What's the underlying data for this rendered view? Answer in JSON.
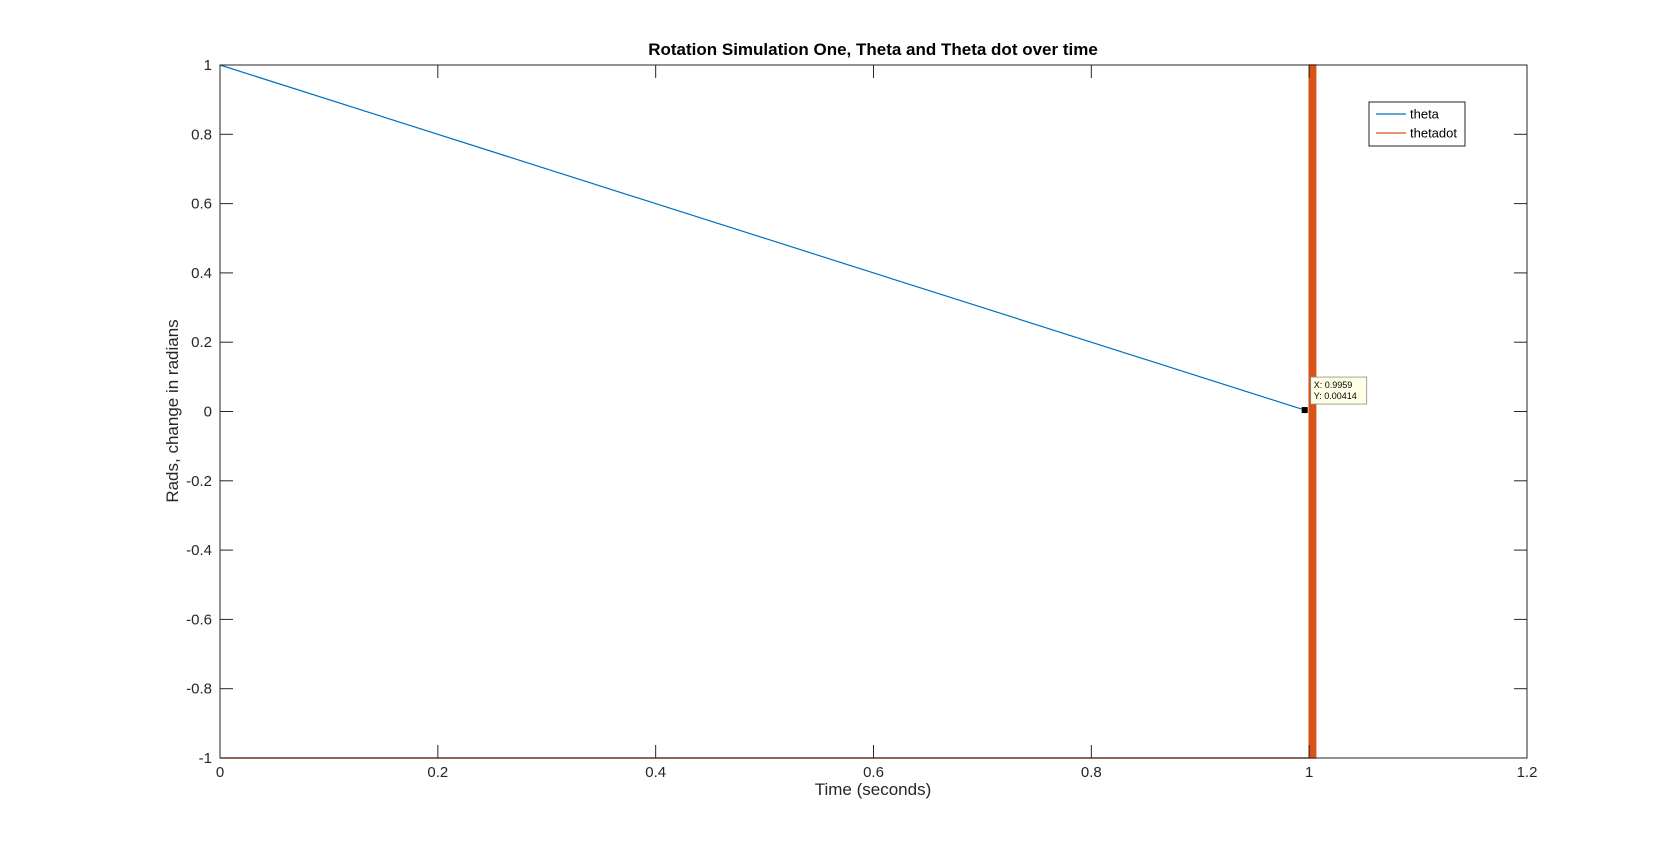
{
  "chart_data": {
    "type": "line",
    "title": "Rotation Simulation One, Theta and Theta dot over time",
    "xlabel": "Time (seconds)",
    "ylabel": "Rads, change in radians",
    "xlim": [
      0,
      1.2
    ],
    "ylim": [
      -1,
      1
    ],
    "xticks": [
      0,
      0.2,
      0.4,
      0.6,
      0.8,
      1,
      1.2
    ],
    "xtick_labels": [
      "0",
      "0.2",
      "0.4",
      "0.6",
      "0.8",
      "1",
      "1.2"
    ],
    "yticks": [
      -1,
      -0.8,
      -0.6,
      -0.4,
      -0.2,
      0,
      0.2,
      0.4,
      0.6,
      0.8,
      1
    ],
    "ytick_labels": [
      "-1",
      "-0.8",
      "-0.6",
      "-0.4",
      "-0.2",
      "0",
      "0.2",
      "0.4",
      "0.6",
      "0.8",
      "1"
    ],
    "grid": false,
    "legend_position": "top-right",
    "series": [
      {
        "name": "theta",
        "color": "#0072BD",
        "x": [
          0,
          0.9959
        ],
        "y": [
          1,
          0.00414
        ]
      },
      {
        "name": "thetadot",
        "color": "#D95319",
        "x": [
          0,
          1,
          1,
          1.006,
          1.006,
          1
        ],
        "y": [
          -1,
          -1,
          1,
          1,
          -1,
          -1
        ]
      }
    ],
    "datatip": {
      "x": 0.9959,
      "y": 0.00414,
      "x_label": "X: 0.9959",
      "y_label": "Y: 0.00414"
    }
  }
}
